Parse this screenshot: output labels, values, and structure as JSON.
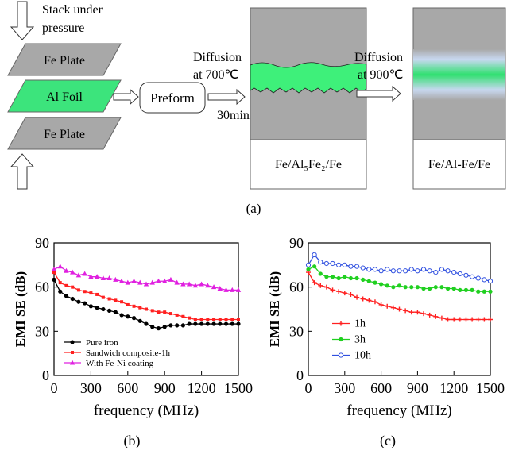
{
  "diagram": {
    "stack_label": [
      "Stack under",
      "pressure"
    ],
    "layers": [
      "Fe Plate",
      "Al Foil",
      "Fe Plate"
    ],
    "preform": "Preform",
    "step1": [
      "Diffusion",
      "at 700℃",
      "30min"
    ],
    "result1": "Fe/Al₅Fe₂/Fe",
    "step2": [
      "Diffusion",
      "at 900℃"
    ],
    "result2": "Fe/Al-Fe/Fe",
    "caption": "(a)"
  },
  "chart_data": [
    {
      "type": "line",
      "caption": "(b)",
      "x_label": "frequency (MHz)",
      "y_label": "EMI SE (dB)",
      "x": [
        0,
        50,
        100,
        150,
        200,
        250,
        300,
        350,
        400,
        450,
        500,
        550,
        600,
        650,
        700,
        750,
        800,
        850,
        900,
        950,
        1000,
        1050,
        1100,
        1150,
        1200,
        1250,
        1300,
        1350,
        1400,
        1450,
        1500
      ],
      "xlim": [
        0,
        1500
      ],
      "xticks": [
        0,
        300,
        600,
        900,
        1200,
        1500
      ],
      "ylim": [
        0,
        90
      ],
      "yticks": [
        0,
        30,
        60,
        90
      ],
      "legend": "lower left",
      "series": [
        {
          "name": "Pure iron",
          "color": "#000000",
          "marker": "circle",
          "values": [
            65,
            57,
            54,
            52,
            50,
            49,
            47,
            46,
            45,
            44,
            43,
            41,
            40,
            39,
            37,
            35,
            33,
            32,
            33,
            34,
            34,
            34,
            35,
            35,
            35,
            35,
            35,
            35,
            35,
            35,
            35
          ]
        },
        {
          "name": "Sandwich composite-1h",
          "color": "#ff2020",
          "marker": "square",
          "values": [
            70,
            63,
            61,
            60,
            58,
            57,
            56,
            55,
            53,
            52,
            51,
            50,
            48,
            47,
            46,
            45,
            44,
            43,
            43,
            42,
            41,
            40,
            39,
            38,
            38,
            38,
            38,
            38,
            38,
            38,
            38
          ]
        },
        {
          "name": "With Fe-Ni coating",
          "color": "#e020e0",
          "marker": "triangle",
          "values": [
            72,
            74,
            71,
            70,
            68,
            69,
            67,
            67,
            66,
            66,
            65,
            64,
            63,
            64,
            63,
            62,
            63,
            64,
            64,
            65,
            63,
            62,
            62,
            61,
            62,
            61,
            60,
            59,
            58,
            58,
            58
          ]
        }
      ]
    },
    {
      "type": "line",
      "caption": "(c)",
      "x_label": "frequency (MHz)",
      "y_label": "EMI SE (dB)",
      "x": [
        0,
        50,
        100,
        150,
        200,
        250,
        300,
        350,
        400,
        450,
        500,
        550,
        600,
        650,
        700,
        750,
        800,
        850,
        900,
        950,
        1000,
        1050,
        1100,
        1150,
        1200,
        1250,
        1300,
        1350,
        1400,
        1450,
        1500
      ],
      "xlim": [
        0,
        1500
      ],
      "xticks": [
        0,
        300,
        600,
        900,
        1200,
        1500
      ],
      "ylim": [
        0,
        90
      ],
      "yticks": [
        0,
        30,
        60,
        90
      ],
      "legend": "center left",
      "series": [
        {
          "name": "1h",
          "color": "#ff2020",
          "marker": "plus",
          "values": [
            70,
            63,
            61,
            60,
            58,
            57,
            56,
            55,
            53,
            52,
            51,
            50,
            48,
            47,
            46,
            45,
            44,
            43,
            43,
            42,
            41,
            40,
            39,
            38,
            38,
            38,
            38,
            38,
            38,
            38,
            38
          ]
        },
        {
          "name": "3h",
          "color": "#20d020",
          "marker": "circle",
          "values": [
            72,
            74,
            69,
            67,
            67,
            66,
            67,
            66,
            66,
            65,
            64,
            63,
            62,
            61,
            60,
            61,
            60,
            60,
            60,
            59,
            59,
            60,
            60,
            59,
            59,
            58,
            58,
            58,
            57,
            57,
            57
          ]
        },
        {
          "name": "10h",
          "color": "#3050e0",
          "marker": "open",
          "values": [
            75,
            82,
            77,
            76,
            76,
            75,
            75,
            74,
            74,
            73,
            72,
            72,
            71,
            72,
            71,
            71,
            71,
            72,
            71,
            72,
            71,
            70,
            72,
            71,
            70,
            69,
            68,
            67,
            66,
            65,
            64
          ]
        }
      ]
    }
  ]
}
